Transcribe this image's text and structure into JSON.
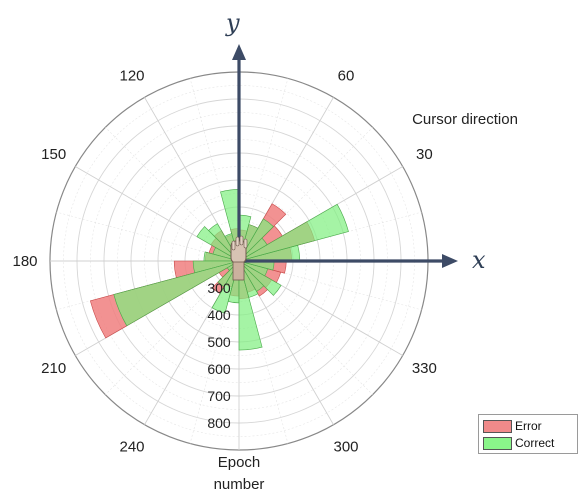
{
  "chart_data": {
    "type": "polar-histogram",
    "angular_ticks": [
      {
        "deg": 30,
        "label": "30"
      },
      {
        "deg": 60,
        "label": "60"
      },
      {
        "deg": 120,
        "label": "120"
      },
      {
        "deg": 150,
        "label": "150"
      },
      {
        "deg": 180,
        "label": "180"
      },
      {
        "deg": 210,
        "label": "210"
      },
      {
        "deg": 240,
        "label": "240"
      },
      {
        "deg": 300,
        "label": "300"
      },
      {
        "deg": 330,
        "label": "330"
      }
    ],
    "angular_label": "Cursor direction",
    "radial_ticks": [
      "300",
      "400",
      "500",
      "600",
      "700",
      "800"
    ],
    "radial_label_line1": "Epoch",
    "radial_label_line2": "number",
    "rlim": [
      200,
      900
    ],
    "bin_width_deg": 15,
    "grid": true,
    "legend_position": "bottom-right",
    "axis_x_label": "x",
    "axis_y_label": "y",
    "series": [
      {
        "name": "Error",
        "color": "#f07f7f",
        "values": [
          395,
          490,
          385,
          445,
          340,
          315,
          320,
          300,
          330,
          320,
          315,
          325,
          440,
          770,
          285,
          340,
          300,
          330,
          340,
          320,
          350,
          340,
          360,
          375
        ]
      },
      {
        "name": "Correct",
        "color": "#7ff07f",
        "values": [
          425,
          620,
          320,
          380,
          340,
          370,
          465,
          305,
          360,
          380,
          300,
          330,
          370,
          680,
          250,
          310,
          400,
          355,
          530,
          340,
          330,
          380,
          310,
          330
        ]
      }
    ]
  }
}
